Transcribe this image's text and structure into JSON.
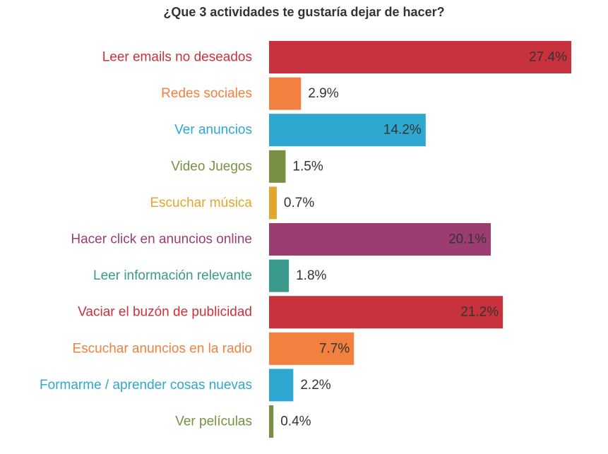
{
  "chart_data": {
    "type": "bar",
    "orientation": "horizontal",
    "title": "¿Que 3 actividades te gustaría dejar de hacer?",
    "xlabel": "",
    "ylabel": "",
    "xlim": [
      0,
      27.4
    ],
    "grid": false,
    "legend": "none",
    "categories": [
      "Leer emails no deseados",
      "Redes sociales",
      "Ver anuncios",
      "Video Juegos",
      "Escuchar música",
      "Hacer click en anuncios online",
      "Leer información relevante",
      "Vaciar el buzón de publicidad",
      "Escuchar anuncios en la radio",
      "Formarme / aprender cosas nuevas",
      "Ver películas"
    ],
    "values": [
      27.4,
      2.9,
      14.2,
      1.5,
      0.7,
      20.1,
      1.8,
      21.2,
      7.7,
      2.2,
      0.4
    ],
    "value_labels": [
      "27.4%",
      "2.9%",
      "14.2%",
      "1.5%",
      "0.7%",
      "20.1%",
      "1.8%",
      "21.2%",
      "7.7%",
      "2.2%",
      "0.4%"
    ],
    "colors": [
      "#c8323c",
      "#f2803f",
      "#2ea8d0",
      "#779043",
      "#e3a62c",
      "#9c3d72",
      "#3a9a8c",
      "#c8323c",
      "#f2803f",
      "#2ea8d0",
      "#779043"
    ]
  }
}
